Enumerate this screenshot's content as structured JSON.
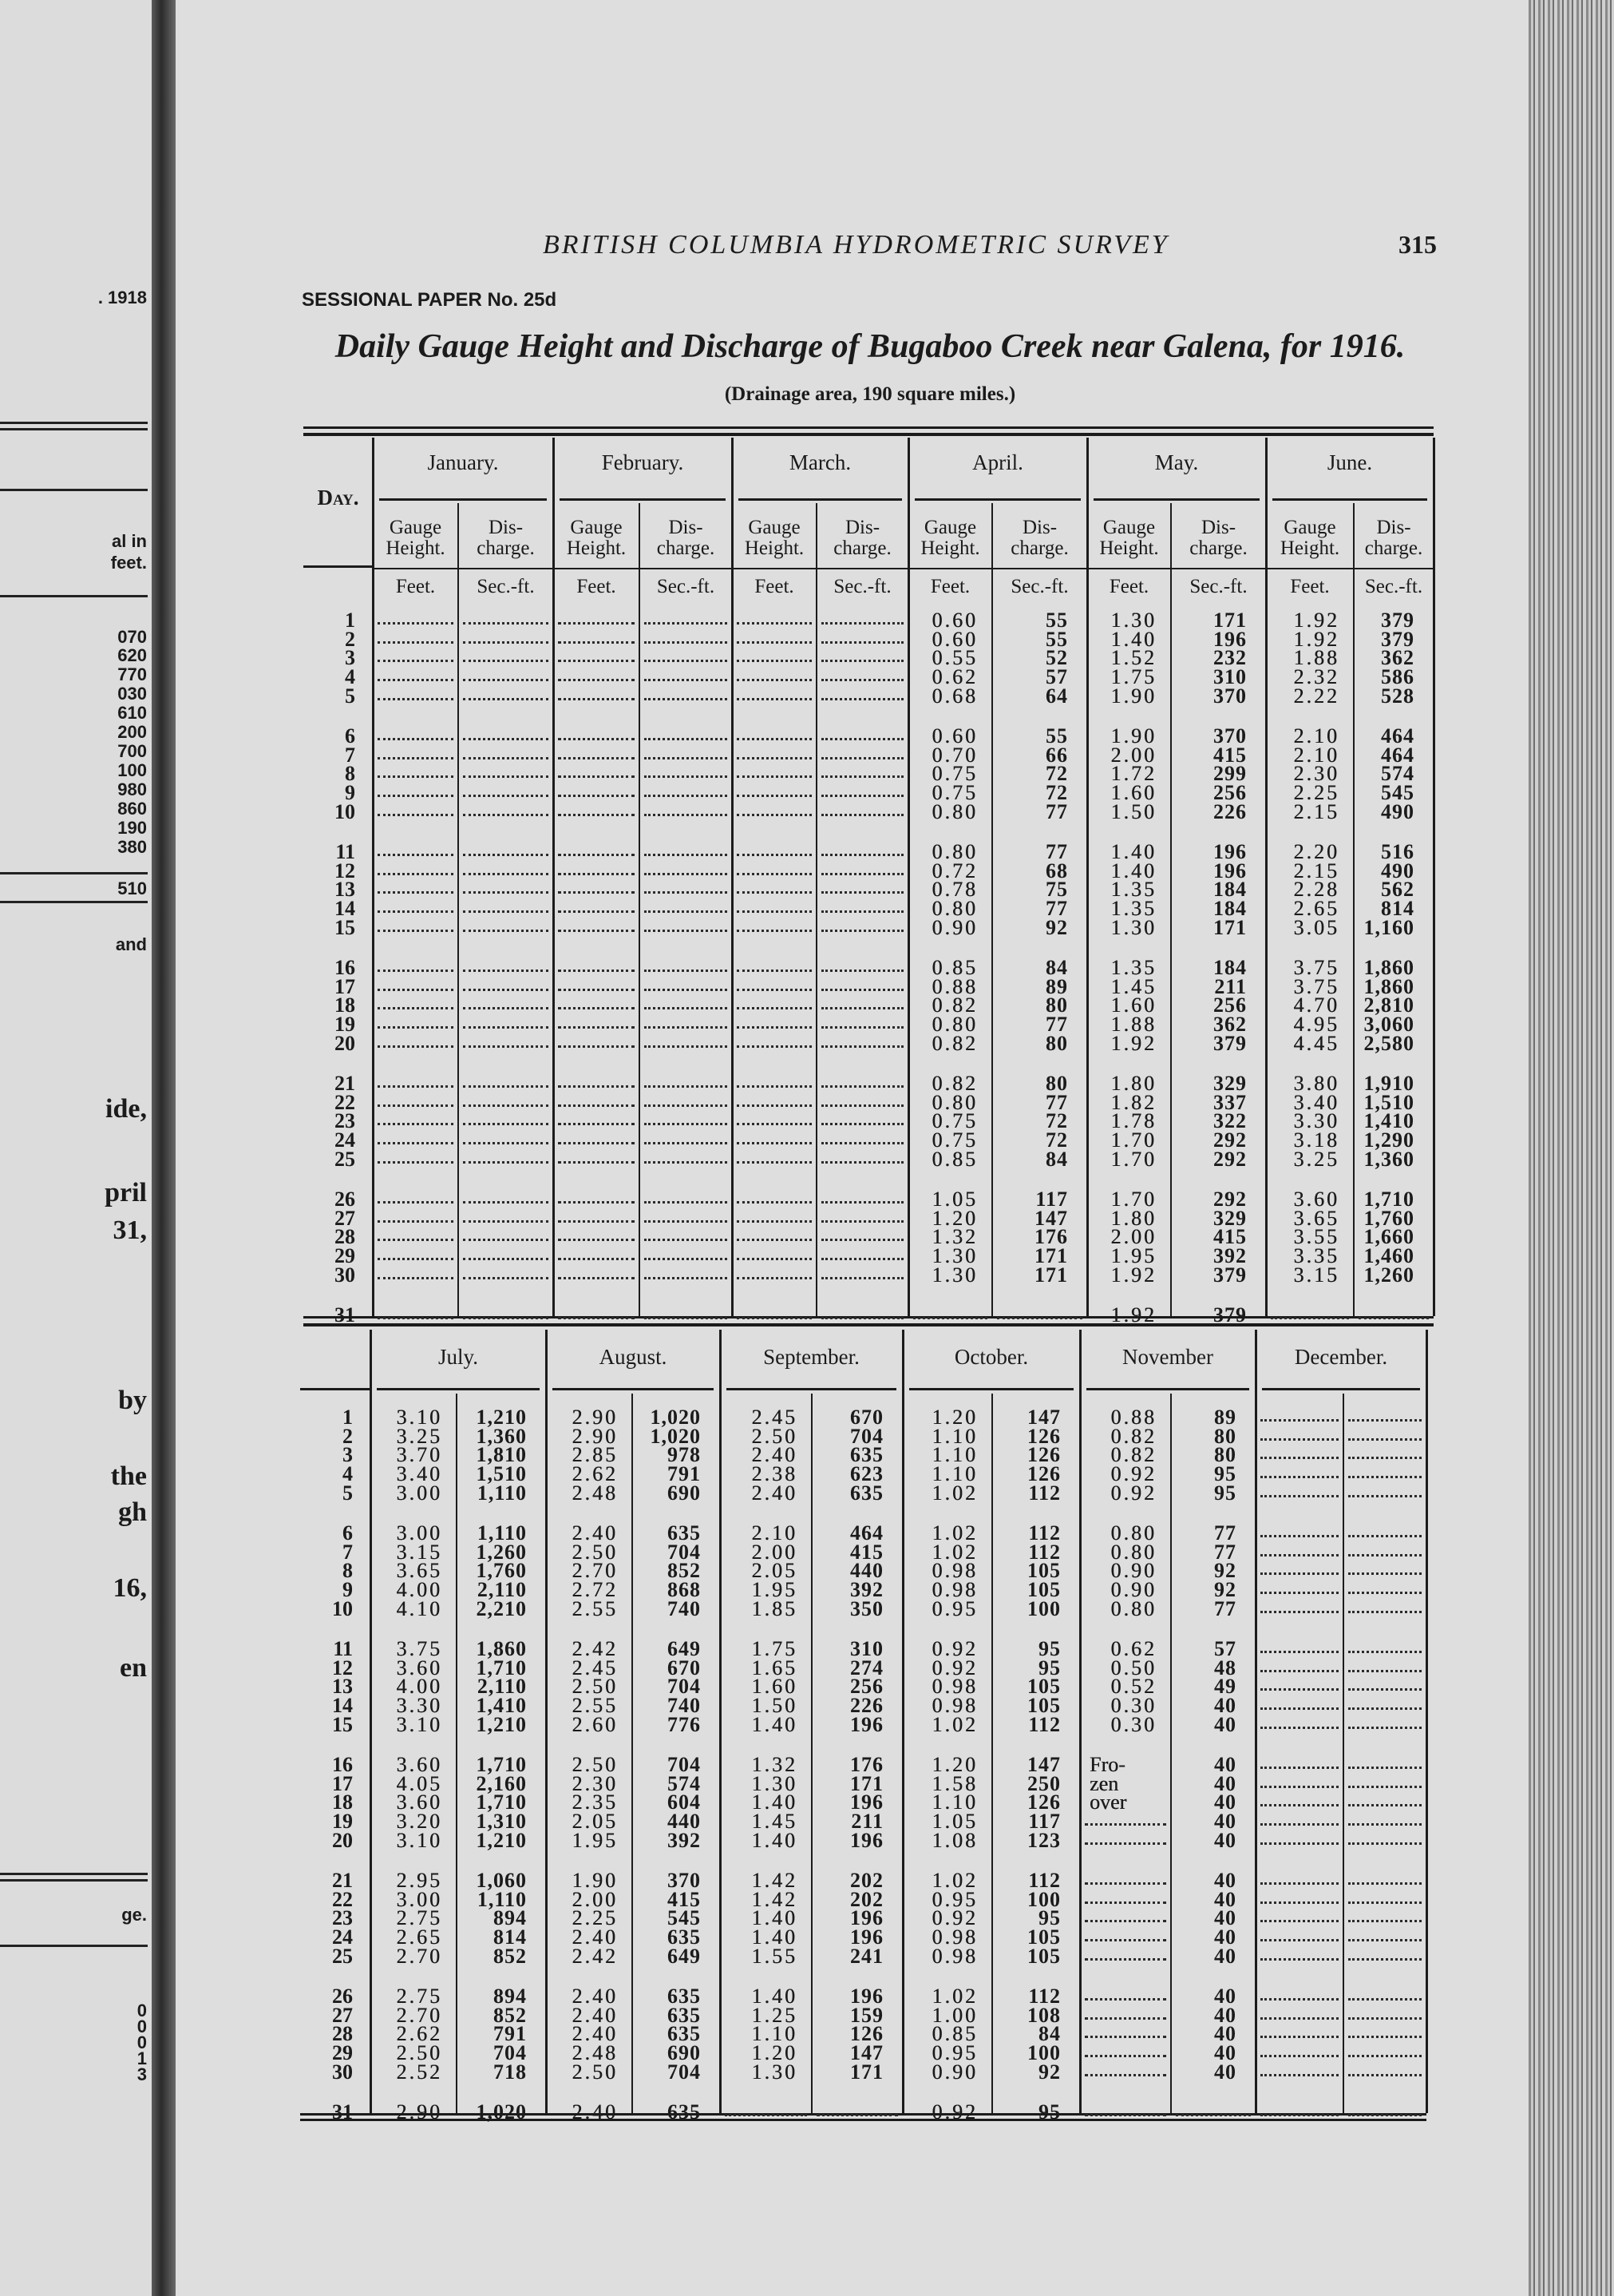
{
  "left_page_fragments": [
    ". 1918",
    "al in",
    "feet.",
    "070",
    "620",
    "770",
    "030",
    "610",
    "200",
    "700",
    "100",
    "980",
    "860",
    "190",
    "380",
    "510",
    "and",
    "ide,",
    "pril",
    "31,",
    "by",
    "the",
    "gh",
    "16,",
    "en",
    "ge.",
    "0",
    "0",
    "0",
    "1",
    "3"
  ],
  "header": {
    "running_head": "BRITISH COLUMBIA HYDROMETRIC SURVEY",
    "page_number": "315",
    "sessional_paper": "SESSIONAL PAPER No. 25d",
    "title": "Daily Gauge Height and Discharge of Bugaboo Creek near Galena, for 1916.",
    "subtitle": "(Drainage area, 190 square miles.)"
  },
  "column_labels": {
    "day": "Day.",
    "gauge": [
      "Gauge",
      "Height."
    ],
    "discharge": [
      "Dis-",
      "charge."
    ],
    "gauge_unit": "Feet.",
    "discharge_unit": "Sec.-ft."
  },
  "days": [
    "1",
    "2",
    "3",
    "4",
    "5",
    "6",
    "7",
    "8",
    "9",
    "10",
    "11",
    "12",
    "13",
    "14",
    "15",
    "16",
    "17",
    "18",
    "19",
    "20",
    "21",
    "22",
    "23",
    "24",
    "25",
    "26",
    "27",
    "28",
    "29",
    "30",
    "31"
  ],
  "top_table": {
    "months": [
      {
        "name": "January.",
        "gauge": [],
        "discharge": []
      },
      {
        "name": "February.",
        "gauge": [],
        "discharge": []
      },
      {
        "name": "March.",
        "gauge": [],
        "discharge": []
      },
      {
        "name": "April.",
        "gauge": [
          "0.60",
          "0.60",
          "0.55",
          "0.62",
          "0.68",
          "0.60",
          "0.70",
          "0.75",
          "0.75",
          "0.80",
          "0.80",
          "0.72",
          "0.78",
          "0.80",
          "0.90",
          "0.85",
          "0.88",
          "0.82",
          "0.80",
          "0.82",
          "0.82",
          "0.80",
          "0.75",
          "0.75",
          "0.85",
          "1.05",
          "1.20",
          "1.32",
          "1.30",
          "1.30",
          ""
        ],
        "discharge": [
          "55",
          "55",
          "52",
          "57",
          "64",
          "55",
          "66",
          "72",
          "72",
          "77",
          "77",
          "68",
          "75",
          "77",
          "92",
          "84",
          "89",
          "80",
          "77",
          "80",
          "80",
          "77",
          "72",
          "72",
          "84",
          "117",
          "147",
          "176",
          "171",
          "171",
          ""
        ]
      },
      {
        "name": "May.",
        "gauge": [
          "1.30",
          "1.40",
          "1.52",
          "1.75",
          "1.90",
          "1.90",
          "2.00",
          "1.72",
          "1.60",
          "1.50",
          "1.40",
          "1.40",
          "1.35",
          "1.35",
          "1.30",
          "1.35",
          "1.45",
          "1.60",
          "1.88",
          "1.92",
          "1.80",
          "1.82",
          "1.78",
          "1.70",
          "1.70",
          "1.70",
          "1.80",
          "2.00",
          "1.95",
          "1.92",
          "1.92"
        ],
        "discharge": [
          "171",
          "196",
          "232",
          "310",
          "370",
          "370",
          "415",
          "299",
          "256",
          "226",
          "196",
          "196",
          "184",
          "184",
          "171",
          "184",
          "211",
          "256",
          "362",
          "379",
          "329",
          "337",
          "322",
          "292",
          "292",
          "292",
          "329",
          "415",
          "392",
          "379",
          "379"
        ]
      },
      {
        "name": "June.",
        "gauge": [
          "1.92",
          "1.92",
          "1.88",
          "2.32",
          "2.22",
          "2.10",
          "2.10",
          "2.30",
          "2.25",
          "2.15",
          "2.20",
          "2.15",
          "2.28",
          "2.65",
          "3.05",
          "3.75",
          "3.75",
          "4.70",
          "4.95",
          "4.45",
          "3.80",
          "3.40",
          "3.30",
          "3.18",
          "3.25",
          "3.60",
          "3.65",
          "3.55",
          "3.35",
          "3.15",
          ""
        ],
        "discharge": [
          "379",
          "379",
          "362",
          "586",
          "528",
          "464",
          "464",
          "574",
          "545",
          "490",
          "516",
          "490",
          "562",
          "814",
          "1,160",
          "1,860",
          "1,860",
          "2,810",
          "3,060",
          "2,580",
          "1,910",
          "1,510",
          "1,410",
          "1,290",
          "1,360",
          "1,710",
          "1,760",
          "1,660",
          "1,460",
          "1,260",
          ""
        ]
      }
    ]
  },
  "bottom_table": {
    "months": [
      {
        "name": "July.",
        "gauge": [
          "3.10",
          "3.25",
          "3.70",
          "3.40",
          "3.00",
          "3.00",
          "3.15",
          "3.65",
          "4.00",
          "4.10",
          "3.75",
          "3.60",
          "4.00",
          "3.30",
          "3.10",
          "3.60",
          "4.05",
          "3.60",
          "3.20",
          "3.10",
          "2.95",
          "3.00",
          "2.75",
          "2.65",
          "2.70",
          "2.75",
          "2.70",
          "2.62",
          "2.50",
          "2.52",
          "2.90"
        ],
        "discharge": [
          "1,210",
          "1,360",
          "1,810",
          "1,510",
          "1,110",
          "1,110",
          "1,260",
          "1,760",
          "2,110",
          "2,210",
          "1,860",
          "1,710",
          "2,110",
          "1,410",
          "1,210",
          "1,710",
          "2,160",
          "1,710",
          "1,310",
          "1,210",
          "1,060",
          "1,110",
          "894",
          "814",
          "852",
          "894",
          "852",
          "791",
          "704",
          "718",
          "1,020"
        ]
      },
      {
        "name": "August.",
        "gauge": [
          "2.90",
          "2.90",
          "2.85",
          "2.62",
          "2.48",
          "2.40",
          "2.50",
          "2.70",
          "2.72",
          "2.55",
          "2.42",
          "2.45",
          "2.50",
          "2.55",
          "2.60",
          "2.50",
          "2.30",
          "2.35",
          "2.05",
          "1.95",
          "1.90",
          "2.00",
          "2.25",
          "2.40",
          "2.42",
          "2.40",
          "2.40",
          "2.40",
          "2.48",
          "2.50",
          "2.40"
        ],
        "discharge": [
          "1,020",
          "1,020",
          "978",
          "791",
          "690",
          "635",
          "704",
          "852",
          "868",
          "740",
          "649",
          "670",
          "704",
          "740",
          "776",
          "704",
          "574",
          "604",
          "440",
          "392",
          "370",
          "415",
          "545",
          "635",
          "649",
          "635",
          "635",
          "635",
          "690",
          "704",
          "635"
        ]
      },
      {
        "name": "September.",
        "gauge": [
          "2.45",
          "2.50",
          "2.40",
          "2.38",
          "2.40",
          "2.10",
          "2.00",
          "2.05",
          "1.95",
          "1.85",
          "1.75",
          "1.65",
          "1.60",
          "1.50",
          "1.40",
          "1.32",
          "1.30",
          "1.40",
          "1.45",
          "1.40",
          "1.42",
          "1.42",
          "1.40",
          "1.40",
          "1.55",
          "1.40",
          "1.25",
          "1.10",
          "1.20",
          "1.30",
          ""
        ],
        "discharge": [
          "670",
          "704",
          "635",
          "623",
          "635",
          "464",
          "415",
          "440",
          "392",
          "350",
          "310",
          "274",
          "256",
          "226",
          "196",
          "176",
          "171",
          "196",
          "211",
          "196",
          "202",
          "202",
          "196",
          "196",
          "241",
          "196",
          "159",
          "126",
          "147",
          "171",
          ""
        ]
      },
      {
        "name": "October.",
        "gauge": [
          "1.20",
          "1.10",
          "1.10",
          "1.10",
          "1.02",
          "1.02",
          "1.02",
          "0.98",
          "0.98",
          "0.95",
          "0.92",
          "0.92",
          "0.98",
          "0.98",
          "1.02",
          "1.20",
          "1.58",
          "1.10",
          "1.05",
          "1.08",
          "1.02",
          "0.95",
          "0.92",
          "0.98",
          "0.98",
          "1.02",
          "1.00",
          "0.85",
          "0.95",
          "0.90",
          "0.92"
        ],
        "discharge": [
          "147",
          "126",
          "126",
          "126",
          "112",
          "112",
          "112",
          "105",
          "105",
          "100",
          "95",
          "95",
          "105",
          "105",
          "112",
          "147",
          "250",
          "126",
          "117",
          "123",
          "112",
          "100",
          "95",
          "105",
          "105",
          "112",
          "108",
          "84",
          "100",
          "92",
          "95"
        ]
      },
      {
        "name": "November",
        "gauge": [
          "0.88",
          "0.82",
          "0.82",
          "0.92",
          "0.92",
          "0.80",
          "0.80",
          "0.90",
          "0.90",
          "0.80",
          "0.62",
          "0.50",
          "0.52",
          "0.30",
          "0.30",
          "Fro-",
          "zen",
          "over",
          "",
          "",
          "",
          "",
          "",
          "",
          "",
          "",
          "",
          "",
          "",
          "",
          ""
        ],
        "discharge": [
          "89",
          "80",
          "80",
          "95",
          "95",
          "77",
          "77",
          "92",
          "92",
          "77",
          "57",
          "48",
          "49",
          "40",
          "40",
          "40",
          "40",
          "40",
          "40",
          "40",
          "40",
          "40",
          "40",
          "40",
          "40",
          "40",
          "40",
          "40",
          "40",
          "40",
          ""
        ]
      },
      {
        "name": "December.",
        "gauge": [],
        "discharge": []
      }
    ]
  }
}
